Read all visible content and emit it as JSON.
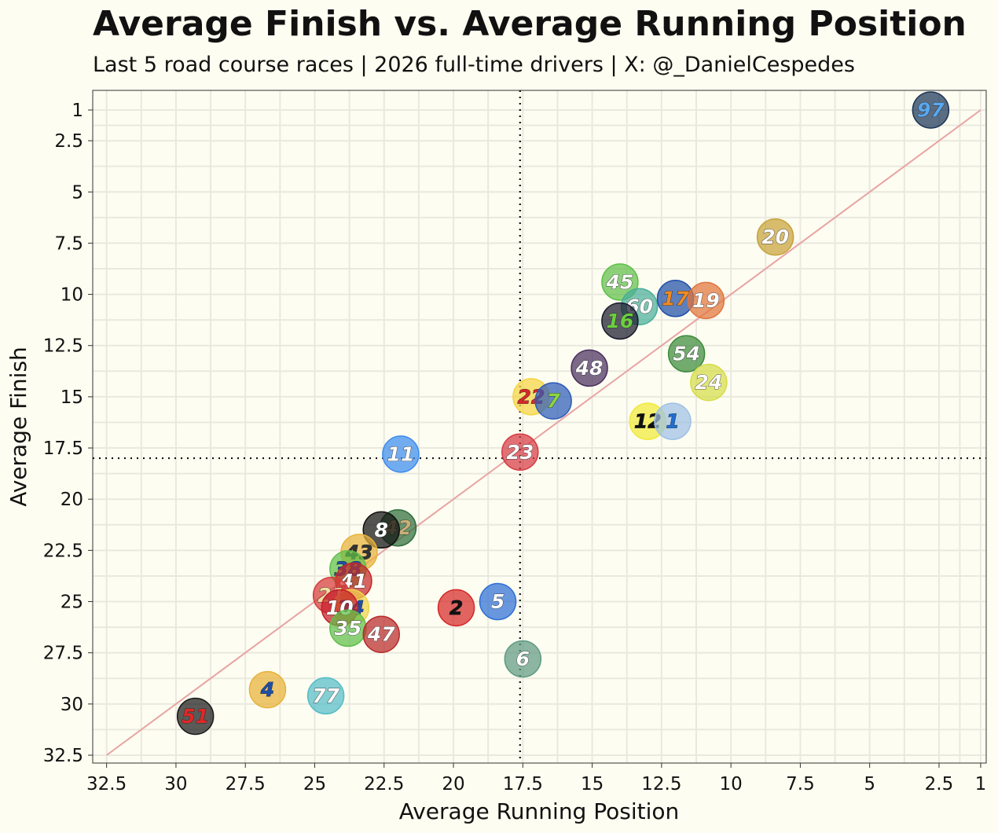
{
  "chart_data": {
    "type": "scatter",
    "title": "Average Finish vs. Average Running Position",
    "subtitle": "Last 5 road course races | 2026 full-time drivers | X: @_DanielCespedes",
    "xlabel": "Average Running Position",
    "ylabel": "Average Finish",
    "xlim": [
      33,
      0.8
    ],
    "ylim": [
      1,
      32.5
    ],
    "x_reversed": true,
    "y_reversed": true,
    "xticks": [
      "32.5",
      "30",
      "27.5",
      "25",
      "22.5",
      "20",
      "17.5",
      "15",
      "12.5",
      "10",
      "7.5",
      "5",
      "2.5",
      "1"
    ],
    "xtick_values": [
      32.5,
      30,
      27.5,
      25,
      22.5,
      20,
      17.5,
      15,
      12.5,
      10,
      7.5,
      5,
      2.5,
      1
    ],
    "yticks": [
      "1",
      "2.5",
      "5",
      "7.5",
      "10",
      "12.5",
      "15",
      "17.5",
      "20",
      "22.5",
      "25",
      "27.5",
      "30",
      "32.5"
    ],
    "ytick_values": [
      1,
      2.5,
      5,
      7.5,
      10,
      12.5,
      15,
      17.5,
      20,
      22.5,
      25,
      27.5,
      30,
      32.5
    ],
    "reference_lines": {
      "mean_x": 17.6,
      "mean_y": 18.0,
      "diagonal": "y = x"
    },
    "grid": true,
    "points": [
      {
        "label": "97",
        "x": 2.8,
        "y": 1.0,
        "color": "#1c3557",
        "text": "#5aa8f0"
      },
      {
        "label": "20",
        "x": 8.4,
        "y": 7.2,
        "color": "#c7a23c",
        "text": "#ffffff"
      },
      {
        "label": "45",
        "x": 14.0,
        "y": 9.4,
        "color": "#5fbf4a",
        "text": "#ffffff"
      },
      {
        "label": "60",
        "x": 13.3,
        "y": 10.6,
        "color": "#4aae9a",
        "text": "#ffffff"
      },
      {
        "label": "17",
        "x": 12.0,
        "y": 10.2,
        "color": "#1f4fa8",
        "text": "#f08a24"
      },
      {
        "label": "19",
        "x": 10.9,
        "y": 10.3,
        "color": "#e0743c",
        "text": "#ffffff"
      },
      {
        "label": "16",
        "x": 14.0,
        "y": 11.3,
        "color": "#1b1b2e",
        "text": "#6ccf3e"
      },
      {
        "label": "54",
        "x": 11.6,
        "y": 12.9,
        "color": "#3c8a3c",
        "text": "#ffffff"
      },
      {
        "label": "48",
        "x": 15.1,
        "y": 13.6,
        "color": "#4a2f5e",
        "text": "#ffffff"
      },
      {
        "label": "24",
        "x": 10.8,
        "y": 14.3,
        "color": "#d6dc4a",
        "text": "#ffffff"
      },
      {
        "label": "22",
        "x": 17.2,
        "y": 15.0,
        "color": "#f5d442",
        "text": "#d62828"
      },
      {
        "label": "7",
        "x": 16.4,
        "y": 15.2,
        "color": "#2e5bb8",
        "text": "#8ad640"
      },
      {
        "label": "12",
        "x": 13.0,
        "y": 16.2,
        "color": "#f0ea3a",
        "text": "#111111"
      },
      {
        "label": "1",
        "x": 12.1,
        "y": 16.2,
        "color": "#9ec0e6",
        "text": "#1e6fd0"
      },
      {
        "label": "11",
        "x": 21.9,
        "y": 17.8,
        "color": "#3c8cf0",
        "text": "#ffffff"
      },
      {
        "label": "23",
        "x": 17.6,
        "y": 17.7,
        "color": "#d63a45",
        "text": "#ffffff"
      },
      {
        "label": "42",
        "x": 22.0,
        "y": 21.4,
        "color": "#2f6e3c",
        "text": "#c9b07a"
      },
      {
        "label": "8",
        "x": 22.6,
        "y": 21.5,
        "color": "#111111",
        "text": "#ffffff"
      },
      {
        "label": "43",
        "x": 23.4,
        "y": 22.6,
        "color": "#e8b23a",
        "text": "#333333"
      },
      {
        "label": "38",
        "x": 23.8,
        "y": 23.4,
        "color": "#5fbf4a",
        "text": "#1e4fa8"
      },
      {
        "label": "41",
        "x": 23.6,
        "y": 24.0,
        "color": "#c62828",
        "text": "#ffffff"
      },
      {
        "label": "21",
        "x": 24.4,
        "y": 24.7,
        "color": "#d63a3a",
        "text": "#f0e0a0"
      },
      {
        "label": "34",
        "x": 23.7,
        "y": 25.3,
        "color": "#f0d24a",
        "text": "#1e4fa8"
      },
      {
        "label": "10",
        "x": 24.1,
        "y": 25.3,
        "color": "#c61f2a",
        "text": "#ffffff"
      },
      {
        "label": "35",
        "x": 23.8,
        "y": 26.3,
        "color": "#5fbf4a",
        "text": "#ffffff"
      },
      {
        "label": "47",
        "x": 22.6,
        "y": 26.6,
        "color": "#b82a2a",
        "text": "#ffffff"
      },
      {
        "label": "2",
        "x": 19.9,
        "y": 25.3,
        "color": "#d62828",
        "text": "#111111"
      },
      {
        "label": "5",
        "x": 18.4,
        "y": 25.0,
        "color": "#2e6fd6",
        "text": "#ffffff"
      },
      {
        "label": "6",
        "x": 17.5,
        "y": 27.8,
        "color": "#5f9a82",
        "text": "#ffffff"
      },
      {
        "label": "4",
        "x": 26.7,
        "y": 29.3,
        "color": "#e8b23a",
        "text": "#1e4fa8"
      },
      {
        "label": "77",
        "x": 24.6,
        "y": 29.6,
        "color": "#55bcc8",
        "text": "#ffffff"
      },
      {
        "label": "51",
        "x": 29.3,
        "y": 30.6,
        "color": "#1a1a1a",
        "text": "#e02828"
      }
    ],
    "colors": {
      "background": "#fdfdf1",
      "grid": "#e9e9e0",
      "diagonal": "#e8a3a3",
      "mean_line": "#111111"
    }
  }
}
